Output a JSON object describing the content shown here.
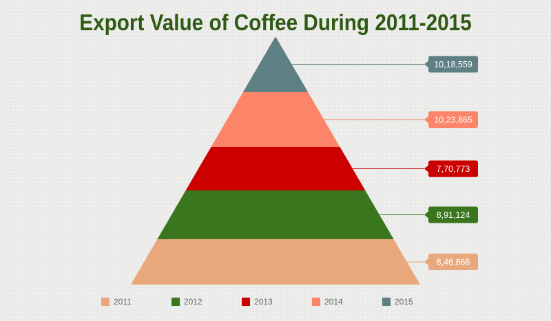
{
  "chart_data": {
    "type": "pyramid",
    "title": "Export Value of Coffee During 2011-2015",
    "categories": [
      "2011",
      "2012",
      "2013",
      "2014",
      "2015"
    ],
    "values": [
      846866,
      891124,
      770773,
      1023865,
      1018559
    ],
    "value_labels": [
      "8,46,866",
      "8,91,124",
      "7,70,773",
      "10,23,865",
      "10,18,559"
    ],
    "colors": [
      "#e9a87b",
      "#3a761d",
      "#cc0000",
      "#fc8468",
      "#5e7f83"
    ],
    "legend": {
      "position": "bottom"
    },
    "grid": false
  }
}
